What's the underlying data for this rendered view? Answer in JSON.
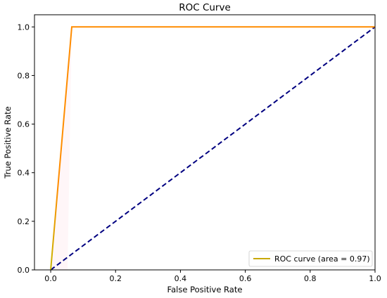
{
  "chart_data": {
    "type": "line",
    "title": "ROC Curve",
    "xlabel": "False Positive Rate",
    "ylabel": "True Positive Rate",
    "xlim": [
      -0.05,
      1.0
    ],
    "ylim": [
      0.0,
      1.05
    ],
    "xticks": [
      0.0,
      0.2,
      0.4,
      0.6,
      0.8,
      1.0
    ],
    "yticks": [
      0.0,
      0.2,
      0.4,
      0.6,
      0.8,
      1.0
    ],
    "tick_labels_x": [
      "0.0",
      "0.2",
      "0.4",
      "0.6",
      "0.8",
      "1.0"
    ],
    "tick_labels_y": [
      "0.0",
      "0.2",
      "0.4",
      "0.6",
      "0.8",
      "1.0"
    ],
    "grid": false,
    "legend_position": "lower-right",
    "series": [
      {
        "name": "ROC curve (area = 0.97)",
        "x": [
          0.0,
          0.065,
          1.0
        ],
        "y": [
          0.0,
          1.0,
          1.0
        ],
        "color": "#ff8c00",
        "gradient_start_color": "#c8b400",
        "style": "solid"
      },
      {
        "x": [
          0.0,
          1.0
        ],
        "y": [
          0.0,
          1.0
        ],
        "color": "#000080",
        "style": "dashed"
      }
    ],
    "legend": {
      "line_color": "#c8a800",
      "entries": [
        "ROC curve (area = 0.97)"
      ]
    }
  }
}
